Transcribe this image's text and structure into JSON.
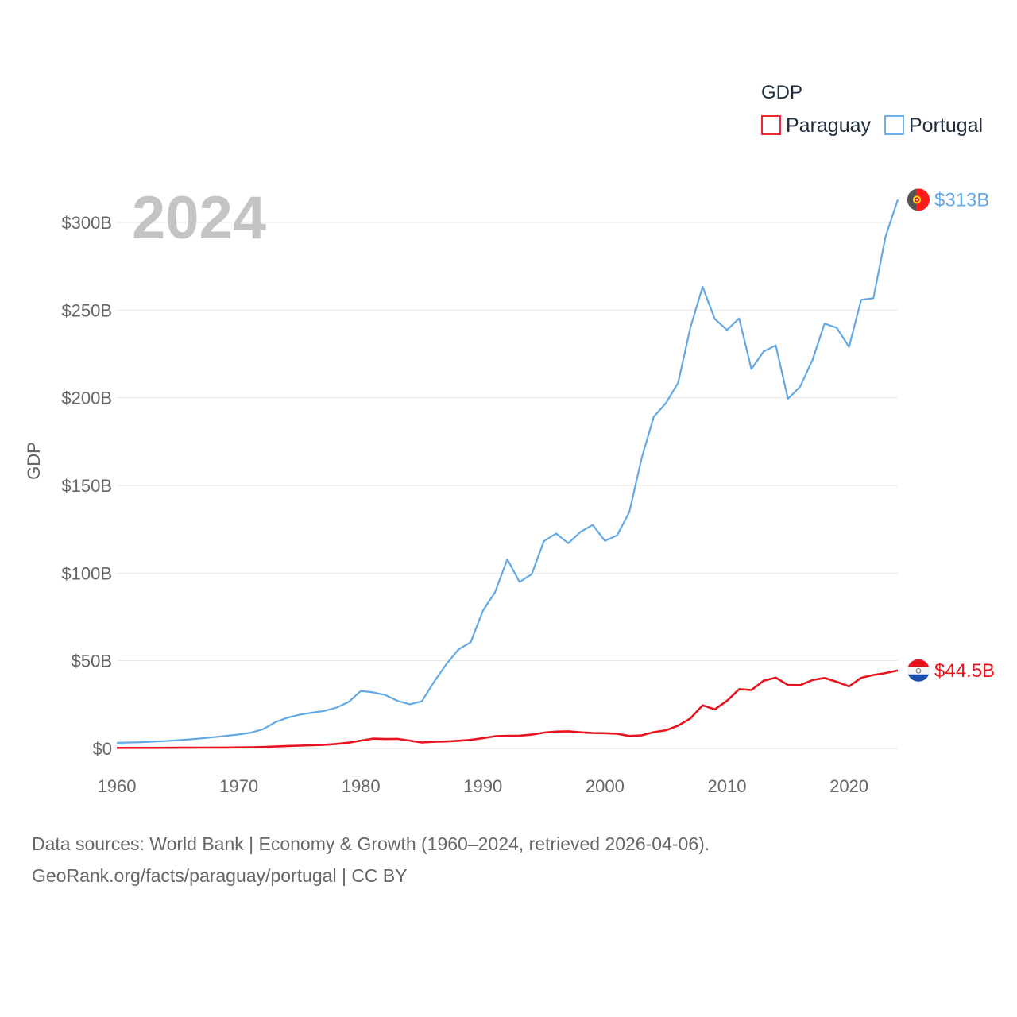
{
  "chart_data": {
    "type": "line",
    "title": "GDP",
    "big_year_label": "2024",
    "ylabel": "GDP",
    "xlabel": "",
    "xlim": [
      1960,
      2024
    ],
    "ylim": [
      0,
      313
    ],
    "y_unit": "billion USD",
    "x_ticks": [
      1960,
      1970,
      1980,
      1990,
      2000,
      2010,
      2020
    ],
    "x_tick_labels": [
      "1960",
      "1970",
      "1980",
      "1990",
      "2000",
      "2010",
      "2020"
    ],
    "y_ticks": [
      0,
      50,
      100,
      150,
      200,
      250,
      300
    ],
    "y_tick_labels": [
      "$0",
      "$50B",
      "$100B",
      "$150B",
      "$200B",
      "$250B",
      "$300B"
    ],
    "grid": true,
    "legend_position": "top-right",
    "x": [
      1960,
      1961,
      1962,
      1963,
      1964,
      1965,
      1966,
      1967,
      1968,
      1969,
      1970,
      1971,
      1972,
      1973,
      1974,
      1975,
      1976,
      1977,
      1978,
      1979,
      1980,
      1981,
      1982,
      1983,
      1984,
      1985,
      1986,
      1987,
      1988,
      1989,
      1990,
      1991,
      1992,
      1993,
      1994,
      1995,
      1996,
      1997,
      1998,
      1999,
      2000,
      2001,
      2002,
      2003,
      2004,
      2005,
      2006,
      2007,
      2008,
      2009,
      2010,
      2011,
      2012,
      2013,
      2014,
      2015,
      2016,
      2017,
      2018,
      2019,
      2020,
      2021,
      2022,
      2023,
      2024
    ],
    "series": [
      {
        "name": "Paraguay",
        "color": "#e8141d",
        "end_label": "$44.5B",
        "flag": "paraguay-flag",
        "values": [
          0.3,
          0.3,
          0.3,
          0.3,
          0.35,
          0.4,
          0.42,
          0.45,
          0.48,
          0.5,
          0.6,
          0.7,
          0.8,
          1.1,
          1.4,
          1.6,
          1.8,
          2.1,
          2.6,
          3.3,
          4.5,
          5.6,
          5.4,
          5.5,
          4.5,
          3.4,
          3.8,
          4.0,
          4.4,
          4.9,
          5.9,
          7.0,
          7.2,
          7.3,
          7.9,
          9.0,
          9.6,
          9.8,
          9.2,
          8.8,
          8.7,
          8.4,
          7.1,
          7.5,
          9.3,
          10.4,
          13.0,
          17.1,
          24.6,
          22.3,
          27.2,
          33.8,
          33.3,
          38.6,
          40.4,
          36.2,
          36.1,
          39.0,
          40.2,
          38.0,
          35.4,
          40.3,
          41.9,
          43.0,
          44.5
        ]
      },
      {
        "name": "Portugal",
        "color": "#62a8e5",
        "end_label": "$313B",
        "flag": "portugal-flag",
        "values": [
          3.2,
          3.4,
          3.6,
          3.9,
          4.2,
          4.7,
          5.2,
          5.8,
          6.5,
          7.2,
          8.0,
          9.0,
          11.0,
          15.0,
          17.6,
          19.3,
          20.4,
          21.4,
          23.3,
          26.5,
          32.8,
          32.0,
          30.5,
          27.2,
          25.2,
          26.9,
          38.0,
          48.0,
          56.5,
          60.6,
          78.6,
          89.1,
          107.9,
          95.0,
          99.4,
          118.3,
          122.6,
          117.0,
          123.6,
          127.5,
          118.4,
          121.6,
          134.8,
          165.4,
          189.2,
          197.0,
          208.6,
          240.0,
          263.3,
          245.0,
          238.7,
          245.3,
          216.4,
          226.4,
          229.9,
          199.4,
          206.4,
          221.4,
          242.3,
          239.9,
          229.0,
          255.9,
          256.8,
          292.0,
          313.0
        ]
      }
    ]
  },
  "source_lines": [
    "Data sources: World Bank | Economy & Growth (1960–2024, retrieved 2026-04-06).",
    "GeoRank.org/facts/paraguay/portugal | CC BY"
  ]
}
